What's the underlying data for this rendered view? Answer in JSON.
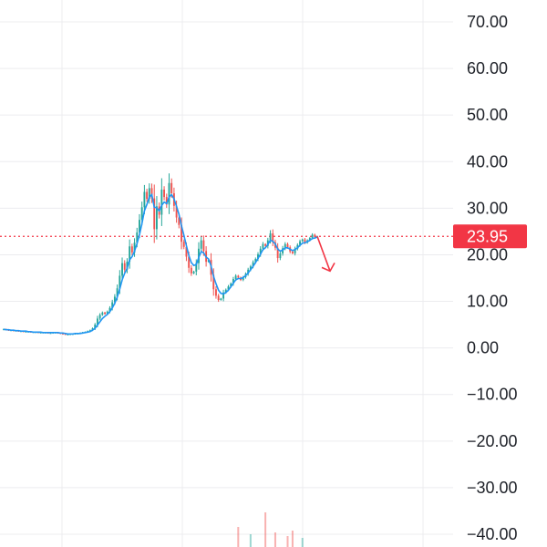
{
  "colors": {
    "background": "#ffffff",
    "grid": "#ececef",
    "up": "#26a69a",
    "down": "#ef5350",
    "ma_line": "#2196f3",
    "price_line": "#f23645",
    "axis_text": "#1e2128"
  },
  "icons": {
    "forecast_arrow": "arrow-down-right-icon"
  },
  "chart_data": {
    "type": "line",
    "subtype": "candlestick with moving average and volume",
    "title": "",
    "xlabel": "",
    "ylabel": "",
    "ylim": [
      -40,
      70
    ],
    "y_ticks": [
      "70.00",
      "60.00",
      "50.00",
      "40.00",
      "30.00",
      "20.00",
      "10.00",
      "0.00",
      "−10.00",
      "−20.00",
      "−30.00",
      "−40.00"
    ],
    "y_tick_values": [
      70,
      60,
      50,
      40,
      30,
      20,
      10,
      0,
      -10,
      -20,
      -30,
      -40
    ],
    "grid": true,
    "last_price": {
      "value": 23.95,
      "label": "23.95"
    },
    "forecast_direction": "down",
    "price_series": [
      4.0,
      3.9,
      3.8,
      3.8,
      3.7,
      3.7,
      3.6,
      3.6,
      3.5,
      3.5,
      3.5,
      3.4,
      3.4,
      3.4,
      3.3,
      3.3,
      3.3,
      3.3,
      3.2,
      3.2,
      3.3,
      3.3,
      3.2,
      3.1,
      3.0,
      2.9,
      2.9,
      3.0,
      3.0,
      3.1,
      3.1,
      3.2,
      3.3,
      3.4,
      3.6,
      3.8,
      4.2,
      5.0,
      6.3,
      7.1,
      7.6,
      7.3,
      7.8,
      8.6,
      9.8,
      11.0,
      12.8,
      15.5,
      18.2,
      16.8,
      18.5,
      21.8,
      20.5,
      22.6,
      24.8,
      27.5,
      30.2,
      33.5,
      32.0,
      34.3,
      32.1,
      25.5,
      30.4,
      28.6,
      34.0,
      32.4,
      30.8,
      35.4,
      33.2,
      30.5,
      28.0,
      26.4,
      22.8,
      21.7,
      19.6,
      17.2,
      16.0,
      16.4,
      18.2,
      21.3,
      23.1,
      20.8,
      18.5,
      18.9,
      15.7,
      12.6,
      11.2,
      10.3,
      10.6,
      11.9,
      12.5,
      13.2,
      13.8,
      14.8,
      15.5,
      15.1,
      14.6,
      15.2,
      15.9,
      16.8,
      17.5,
      18.4,
      19.1,
      20.1,
      21.3,
      22.3,
      21.9,
      23.1,
      24.6,
      22.7,
      21.5,
      19.3,
      20.3,
      21.4,
      22.3,
      21.6,
      20.7,
      20.3,
      21.3,
      22.1,
      22.9,
      23.3,
      22.6,
      23.1,
      23.6,
      24.3,
      23.8,
      23.95
    ],
    "ma_series": [
      4.0,
      3.9,
      3.9,
      3.8,
      3.8,
      3.7,
      3.7,
      3.6,
      3.6,
      3.6,
      3.5,
      3.5,
      3.4,
      3.4,
      3.4,
      3.4,
      3.3,
      3.3,
      3.3,
      3.3,
      3.3,
      3.3,
      3.3,
      3.2,
      3.2,
      3.1,
      3.0,
      3.0,
      3.0,
      3.1,
      3.1,
      3.1,
      3.2,
      3.3,
      3.4,
      3.5,
      3.8,
      4.2,
      4.9,
      5.6,
      6.3,
      6.8,
      7.2,
      7.8,
      8.6,
      9.6,
      10.9,
      12.6,
      14.6,
      16.0,
      17.1,
      18.9,
      19.6,
      20.8,
      22.4,
      24.3,
      26.7,
      29.4,
      30.8,
      32.4,
      32.9,
      30.2,
      30.1,
      29.4,
      30.6,
      31.3,
      31.0,
      32.4,
      32.9,
      32.0,
      30.4,
      28.7,
      26.3,
      24.2,
      22.0,
      19.9,
      18.3,
      17.7,
      17.9,
      19.4,
      20.7,
      20.4,
      19.5,
      19.1,
      17.6,
      15.4,
      13.8,
      12.4,
      11.7,
      11.6,
      11.9,
      12.4,
      13.1,
      13.9,
      14.6,
      14.9,
      14.9,
      15.1,
      15.5,
      16.1,
      16.8,
      17.5,
      18.3,
      19.2,
      20.1,
      21.1,
      21.5,
      22.2,
      23.1,
      22.9,
      22.3,
      21.2,
      20.8,
      21.0,
      21.5,
      21.5,
      21.2,
      20.9,
      21.1,
      21.5,
      22.0,
      22.5,
      22.6,
      22.8,
      23.1,
      23.5,
      23.6,
      23.8
    ]
  }
}
